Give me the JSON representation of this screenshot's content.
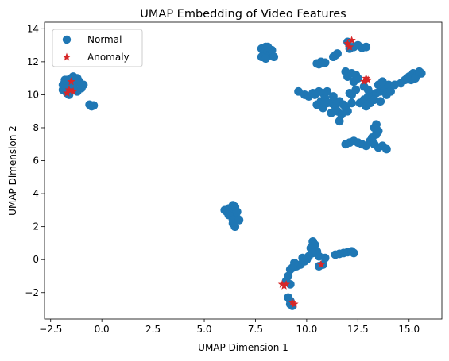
{
  "chart_data": {
    "type": "scatter",
    "title": "UMAP Embedding of Video Features",
    "xlabel": "UMAP Dimension 1",
    "ylabel": "UMAP Dimension 2",
    "xlim": [
      -2.8,
      16.6
    ],
    "ylim": [
      -3.6,
      14.4
    ],
    "xticks": [
      -2.5,
      0.0,
      2.5,
      5.0,
      7.5,
      10.0,
      12.5,
      15.0
    ],
    "xtick_labels": [
      "−2.5",
      "0.0",
      "2.5",
      "5.0",
      "7.5",
      "10.0",
      "12.5",
      "15.0"
    ],
    "yticks": [
      -2,
      0,
      2,
      4,
      6,
      8,
      10,
      12,
      14
    ],
    "ytick_labels": [
      "−2",
      "0",
      "2",
      "4",
      "6",
      "8",
      "10",
      "12",
      "14"
    ],
    "grid": false,
    "legend_position": "top-left",
    "series": [
      {
        "name": "Normal",
        "marker": "circle",
        "color": "#1f77b4",
        "points": [
          [
            -1.9,
            10.3
          ],
          [
            -1.8,
            10.6
          ],
          [
            -1.7,
            10.9
          ],
          [
            -1.6,
            10.5
          ],
          [
            -1.5,
            11.0
          ],
          [
            -1.4,
            10.4
          ],
          [
            -1.3,
            10.7
          ],
          [
            -1.2,
            10.2
          ],
          [
            -1.1,
            10.8
          ],
          [
            -1.7,
            10.1
          ],
          [
            -1.9,
            10.6
          ],
          [
            -1.4,
            11.1
          ],
          [
            -1.0,
            10.4
          ],
          [
            -1.2,
            11.0
          ],
          [
            -1.6,
            10.0
          ],
          [
            -0.9,
            10.6
          ],
          [
            -1.8,
            10.9
          ],
          [
            -1.5,
            10.3
          ],
          [
            -0.6,
            9.4
          ],
          [
            -0.5,
            9.3
          ],
          [
            -0.4,
            9.35
          ],
          [
            6.2,
            3.1
          ],
          [
            6.3,
            2.8
          ],
          [
            6.4,
            3.3
          ],
          [
            6.5,
            2.6
          ],
          [
            6.1,
            2.9
          ],
          [
            6.4,
            2.2
          ],
          [
            6.6,
            2.5
          ],
          [
            6.3,
            3.0
          ],
          [
            6.5,
            3.2
          ],
          [
            6.2,
            2.7
          ],
          [
            6.6,
            2.9
          ],
          [
            6.4,
            2.4
          ],
          [
            6.5,
            2.0
          ],
          [
            6.7,
            2.4
          ],
          [
            6.0,
            3.0
          ],
          [
            7.8,
            12.8
          ],
          [
            7.9,
            12.5
          ],
          [
            8.0,
            12.9
          ],
          [
            8.1,
            12.6
          ],
          [
            7.8,
            12.3
          ],
          [
            8.2,
            12.4
          ],
          [
            8.3,
            12.7
          ],
          [
            8.0,
            12.2
          ],
          [
            8.1,
            12.9
          ],
          [
            8.4,
            12.3
          ],
          [
            9.6,
            10.2
          ],
          [
            9.9,
            10.0
          ],
          [
            10.1,
            9.9
          ],
          [
            10.3,
            10.1
          ],
          [
            10.5,
            11.9
          ],
          [
            10.7,
            12.0
          ],
          [
            10.9,
            11.95
          ],
          [
            10.6,
            11.85
          ],
          [
            11.4,
            12.4
          ],
          [
            11.3,
            12.3
          ],
          [
            11.5,
            12.5
          ],
          [
            10.4,
            10.0
          ],
          [
            10.6,
            10.2
          ],
          [
            10.8,
            10.1
          ],
          [
            11.0,
            10.2
          ],
          [
            10.7,
            9.6
          ],
          [
            10.5,
            9.4
          ],
          [
            10.9,
            9.8
          ],
          [
            11.2,
            9.5
          ],
          [
            11.4,
            9.3
          ],
          [
            11.6,
            9.6
          ],
          [
            11.8,
            9.4
          ],
          [
            11.3,
            9.9
          ],
          [
            11.5,
            9.0
          ],
          [
            11.7,
            8.8
          ],
          [
            11.6,
            8.4
          ],
          [
            11.9,
            9.2
          ],
          [
            12.0,
            9.0
          ],
          [
            12.2,
            9.5
          ],
          [
            10.8,
            9.2
          ],
          [
            11.0,
            9.5
          ],
          [
            11.2,
            8.9
          ],
          [
            12.1,
            10.1
          ],
          [
            11.9,
            11.4
          ],
          [
            12.0,
            11.1
          ],
          [
            12.2,
            11.3
          ],
          [
            12.4,
            11.2
          ],
          [
            12.3,
            10.8
          ],
          [
            12.5,
            11.0
          ],
          [
            12.1,
            12.8
          ],
          [
            12.3,
            12.9
          ],
          [
            12.5,
            13.0
          ],
          [
            12.7,
            12.85
          ],
          [
            12.9,
            12.9
          ],
          [
            12.0,
            13.2
          ],
          [
            12.2,
            10.0
          ],
          [
            12.4,
            10.3
          ],
          [
            12.6,
            9.5
          ],
          [
            12.8,
            9.7
          ],
          [
            13.0,
            9.9
          ],
          [
            13.2,
            10.0
          ],
          [
            13.4,
            10.1
          ],
          [
            13.6,
            10.2
          ],
          [
            13.8,
            10.4
          ],
          [
            14.0,
            10.6
          ],
          [
            13.5,
            10.6
          ],
          [
            13.7,
            10.8
          ],
          [
            13.1,
            9.5
          ],
          [
            13.3,
            9.7
          ],
          [
            13.9,
            10.0
          ],
          [
            14.1,
            10.2
          ],
          [
            13.0,
            10.3
          ],
          [
            12.8,
            10.5
          ],
          [
            14.3,
            10.6
          ],
          [
            14.6,
            10.7
          ],
          [
            12.9,
            9.3
          ],
          [
            13.6,
            9.6
          ],
          [
            11.9,
            7.0
          ],
          [
            12.1,
            7.1
          ],
          [
            12.3,
            7.2
          ],
          [
            12.5,
            7.1
          ],
          [
            12.7,
            7.0
          ],
          [
            12.9,
            6.9
          ],
          [
            13.1,
            7.2
          ],
          [
            13.3,
            7.0
          ],
          [
            13.5,
            6.8
          ],
          [
            13.7,
            6.9
          ],
          [
            13.9,
            6.7
          ],
          [
            13.2,
            7.4
          ],
          [
            13.4,
            7.6
          ],
          [
            13.3,
            8.0
          ],
          [
            13.5,
            7.8
          ],
          [
            13.4,
            8.2
          ],
          [
            14.8,
            10.9
          ],
          [
            15.0,
            11.1
          ],
          [
            15.2,
            11.3
          ],
          [
            15.4,
            11.2
          ],
          [
            15.6,
            11.3
          ],
          [
            15.1,
            10.9
          ],
          [
            15.3,
            11.0
          ],
          [
            15.5,
            11.4
          ],
          [
            14.9,
            11.0
          ],
          [
            10.3,
            1.1
          ],
          [
            10.4,
            0.9
          ],
          [
            10.2,
            0.7
          ],
          [
            10.5,
            0.5
          ],
          [
            10.6,
            0.2
          ],
          [
            10.3,
            0.4
          ],
          [
            10.1,
            0.2
          ],
          [
            10.0,
            0.0
          ],
          [
            9.9,
            -0.1
          ],
          [
            9.8,
            0.1
          ],
          [
            9.7,
            -0.3
          ],
          [
            9.5,
            -0.4
          ],
          [
            9.3,
            -0.5
          ],
          [
            9.2,
            -0.6
          ],
          [
            9.4,
            -0.2
          ],
          [
            10.6,
            -0.4
          ],
          [
            10.8,
            -0.3
          ],
          [
            10.9,
            0.1
          ],
          [
            11.4,
            0.3
          ],
          [
            11.6,
            0.35
          ],
          [
            11.8,
            0.4
          ],
          [
            12.0,
            0.45
          ],
          [
            12.2,
            0.5
          ],
          [
            12.3,
            0.4
          ],
          [
            9.1,
            -1.0
          ],
          [
            9.0,
            -1.3
          ],
          [
            9.2,
            -1.5
          ],
          [
            9.1,
            -2.3
          ],
          [
            9.2,
            -2.7
          ],
          [
            9.3,
            -2.8
          ],
          [
            9.2,
            -2.5
          ]
        ]
      },
      {
        "name": "Anomaly",
        "marker": "star",
        "color": "#d62728",
        "points": [
          [
            -1.5,
            10.8
          ],
          [
            -1.6,
            10.3
          ],
          [
            -1.4,
            10.2
          ],
          [
            -1.7,
            10.1
          ],
          [
            12.0,
            13.1
          ],
          [
            12.2,
            13.3
          ],
          [
            12.1,
            12.9
          ],
          [
            12.9,
            11.0
          ],
          [
            13.0,
            10.9
          ],
          [
            12.8,
            10.8
          ],
          [
            8.8,
            -1.5
          ],
          [
            8.9,
            -1.6
          ],
          [
            9.0,
            -1.5
          ],
          [
            9.3,
            -2.6
          ],
          [
            9.4,
            -2.7
          ],
          [
            10.7,
            -0.3
          ]
        ]
      }
    ]
  }
}
